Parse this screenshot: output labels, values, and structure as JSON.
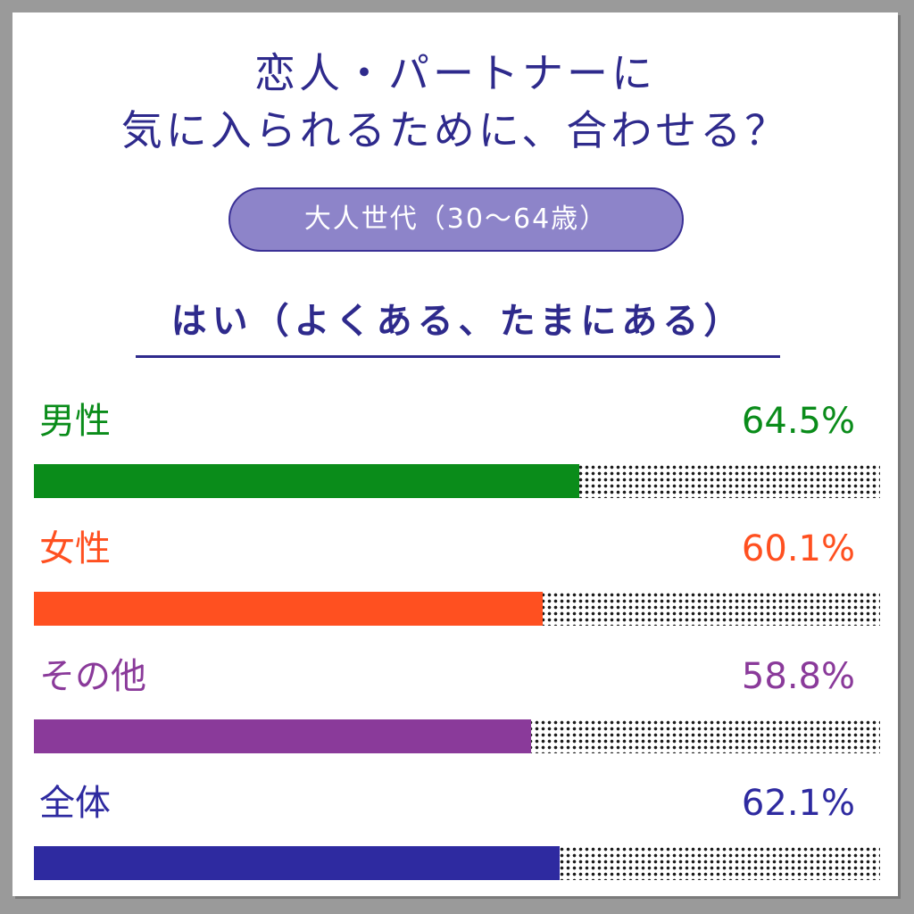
{
  "chart_data": {
    "type": "bar",
    "title_lines": [
      "恋人・パートナーに",
      "気に入られるために、合わせる？"
    ],
    "subtitle": "大人世代（30〜64歳）",
    "series_label": "はい（よくある、たまにある）",
    "categories": [
      "男性",
      "女性",
      "その他",
      "全体"
    ],
    "values": [
      64.5,
      60.1,
      58.8,
      62.1
    ],
    "value_labels": [
      "64.5%",
      "60.1%",
      "58.8%",
      "62.1%"
    ],
    "colors": [
      "#0a8c1a",
      "#ff5020",
      "#8a3a9a",
      "#2e2aa0"
    ],
    "xlim": [
      0,
      100
    ],
    "orientation": "horizontal",
    "grid": false,
    "legend": "none"
  }
}
